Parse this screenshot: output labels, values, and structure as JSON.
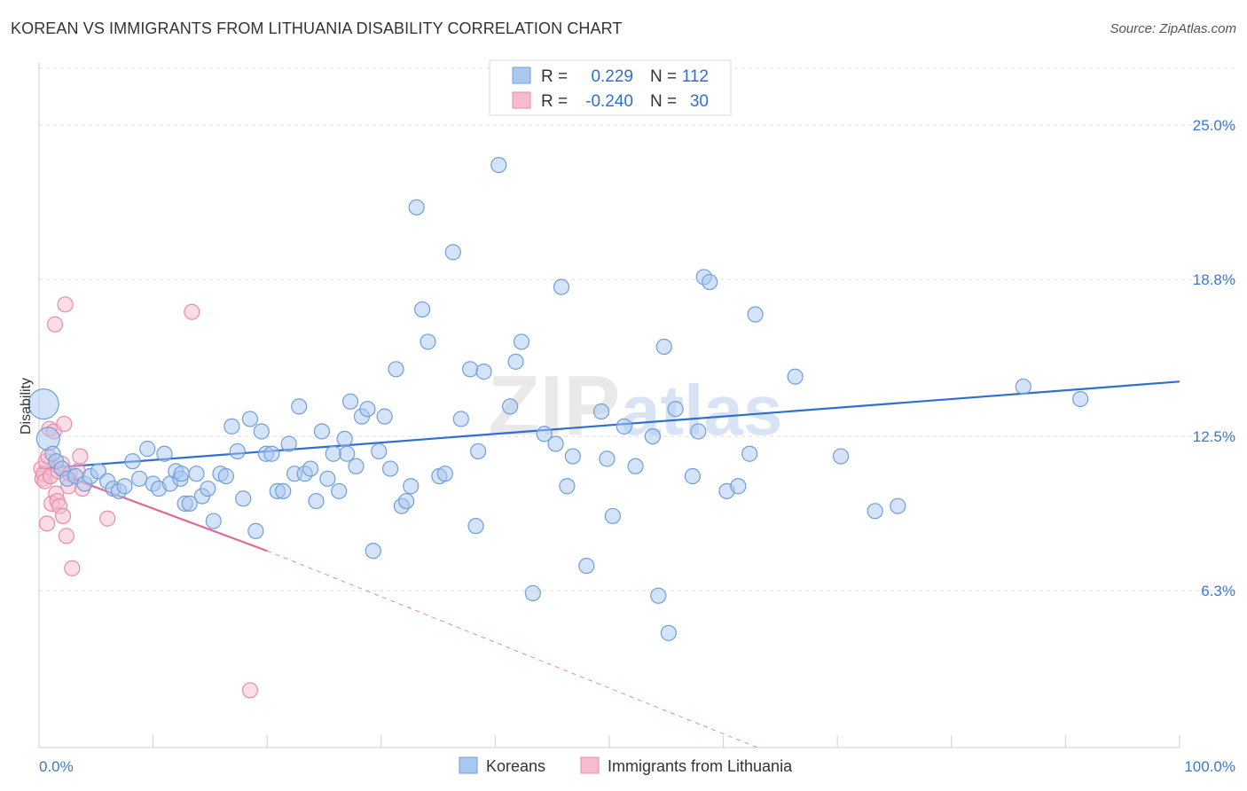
{
  "title": "KOREAN VS IMMIGRANTS FROM LITHUANIA DISABILITY CORRELATION CHART",
  "source": "Source: ZipAtlas.com",
  "watermark": {
    "zip": "ZIP",
    "atlas": "atlas"
  },
  "colors": {
    "koreans_fill": "#a9c8ef",
    "koreans_stroke": "#6f9fd8",
    "koreans_line": "#2f6fcf",
    "lithuania_fill": "#f6bccd",
    "lithuania_stroke": "#ea8ba9",
    "lithuania_line": "#e06a94",
    "tick_label": "#3a78cc",
    "grid": "#dddddd"
  },
  "legend": {
    "rows": [
      {
        "r_label": "R =",
        "r_value": "0.229",
        "n_label": "N =",
        "n_value": "112"
      },
      {
        "r_label": "R =",
        "r_value": "-0.240",
        "n_label": "N =",
        "n_value": "30"
      }
    ]
  },
  "chart_data": {
    "type": "scatter",
    "title": "KOREAN VS IMMIGRANTS FROM LITHUANIA DISABILITY CORRELATION CHART",
    "xlabel": "",
    "ylabel": "Disability",
    "xlim": [
      0,
      100
    ],
    "ylim": [
      0,
      27.5
    ],
    "x_tick_labels": [
      "0.0%",
      "100.0%"
    ],
    "y_ticks": [
      6.3,
      12.5,
      18.8,
      25.0
    ],
    "y_tick_labels": [
      "6.3%",
      "12.5%",
      "18.8%",
      "25.0%"
    ],
    "grid": "horizontal dashed",
    "legend_position": "top-center",
    "series": [
      {
        "name": "Koreans",
        "r": 0.229,
        "n": 112,
        "trendline": {
          "x": [
            0,
            100
          ],
          "y": [
            11.2,
            14.7
          ]
        },
        "points": [
          [
            0.4,
            13.8,
            3
          ],
          [
            0.8,
            12.4,
            2
          ],
          [
            1.2,
            11.8,
            1
          ],
          [
            1.5,
            11.5,
            1
          ],
          [
            2.0,
            11.2,
            1
          ],
          [
            2.5,
            10.8,
            1
          ],
          [
            3.2,
            10.9,
            1
          ],
          [
            4.0,
            10.6,
            1
          ],
          [
            4.5,
            10.9,
            1
          ],
          [
            5.2,
            11.1,
            1
          ],
          [
            6.0,
            10.7,
            1
          ],
          [
            6.5,
            10.4,
            1
          ],
          [
            7.0,
            10.3,
            1
          ],
          [
            7.5,
            10.5,
            1
          ],
          [
            8.2,
            11.5,
            1
          ],
          [
            8.8,
            10.8,
            1
          ],
          [
            9.5,
            12.0,
            1
          ],
          [
            10.0,
            10.6,
            1
          ],
          [
            10.5,
            10.4,
            1
          ],
          [
            11.0,
            11.8,
            1
          ],
          [
            11.5,
            10.6,
            1
          ],
          [
            12.0,
            11.1,
            1
          ],
          [
            12.4,
            10.8,
            1
          ],
          [
            12.8,
            9.8,
            1
          ],
          [
            13.2,
            9.8,
            1
          ],
          [
            13.8,
            11.0,
            1
          ],
          [
            14.3,
            10.1,
            1
          ],
          [
            14.8,
            10.4,
            1
          ],
          [
            15.3,
            9.1,
            1
          ],
          [
            15.9,
            11.0,
            1
          ],
          [
            16.4,
            10.9,
            1
          ],
          [
            16.9,
            12.9,
            1
          ],
          [
            17.4,
            11.9,
            1
          ],
          [
            17.9,
            10.0,
            1
          ],
          [
            18.5,
            13.2,
            1
          ],
          [
            19.0,
            8.7,
            1
          ],
          [
            19.5,
            12.7,
            1
          ],
          [
            19.9,
            11.8,
            1
          ],
          [
            20.4,
            11.8,
            1
          ],
          [
            20.9,
            10.3,
            1
          ],
          [
            21.4,
            10.3,
            1
          ],
          [
            21.9,
            12.2,
            1
          ],
          [
            22.4,
            11.0,
            1
          ],
          [
            22.8,
            13.7,
            1
          ],
          [
            23.3,
            11.0,
            1
          ],
          [
            23.8,
            11.2,
            1
          ],
          [
            24.3,
            9.9,
            1
          ],
          [
            24.8,
            12.7,
            1
          ],
          [
            25.3,
            10.8,
            1
          ],
          [
            25.8,
            11.8,
            1
          ],
          [
            26.3,
            10.3,
            1
          ],
          [
            26.8,
            12.4,
            1
          ],
          [
            27.3,
            13.9,
            1
          ],
          [
            27.8,
            11.3,
            1
          ],
          [
            28.3,
            13.3,
            1
          ],
          [
            28.8,
            13.6,
            1
          ],
          [
            29.3,
            7.9,
            1
          ],
          [
            29.8,
            11.9,
            1
          ],
          [
            30.3,
            13.3,
            1
          ],
          [
            30.8,
            11.2,
            1
          ],
          [
            31.3,
            15.2,
            1
          ],
          [
            31.8,
            9.7,
            1
          ],
          [
            32.2,
            9.9,
            1
          ],
          [
            32.6,
            10.5,
            1
          ],
          [
            33.1,
            21.7,
            1
          ],
          [
            33.6,
            17.6,
            1
          ],
          [
            34.1,
            16.3,
            1
          ],
          [
            35.1,
            10.9,
            1
          ],
          [
            35.6,
            11.0,
            1
          ],
          [
            36.3,
            19.9,
            1
          ],
          [
            37.0,
            13.2,
            1
          ],
          [
            37.8,
            15.2,
            1
          ],
          [
            38.3,
            8.9,
            1
          ],
          [
            39.0,
            15.1,
            1
          ],
          [
            40.3,
            23.4,
            1
          ],
          [
            41.3,
            13.7,
            1
          ],
          [
            41.8,
            15.5,
            1
          ],
          [
            42.3,
            16.3,
            1
          ],
          [
            43.3,
            6.2,
            1
          ],
          [
            44.3,
            12.6,
            1
          ],
          [
            45.3,
            12.2,
            1
          ],
          [
            45.8,
            18.5,
            1
          ],
          [
            46.3,
            10.5,
            1
          ],
          [
            46.8,
            11.7,
            1
          ],
          [
            48.0,
            7.3,
            1
          ],
          [
            49.3,
            13.5,
            1
          ],
          [
            49.8,
            11.6,
            1
          ],
          [
            50.3,
            9.3,
            1
          ],
          [
            51.3,
            12.9,
            1
          ],
          [
            52.3,
            11.3,
            1
          ],
          [
            53.8,
            12.5,
            1
          ],
          [
            54.3,
            6.1,
            1
          ],
          [
            54.8,
            16.1,
            1
          ],
          [
            55.2,
            4.6,
            1
          ],
          [
            55.8,
            13.6,
            1
          ],
          [
            57.3,
            10.9,
            1
          ],
          [
            57.8,
            12.7,
            1
          ],
          [
            58.3,
            18.9,
            1
          ],
          [
            58.8,
            18.7,
            1
          ],
          [
            60.3,
            10.3,
            1
          ],
          [
            61.3,
            10.5,
            1
          ],
          [
            62.3,
            11.8,
            1
          ],
          [
            62.8,
            17.4,
            1
          ],
          [
            66.3,
            14.9,
            1
          ],
          [
            70.3,
            11.7,
            1
          ],
          [
            73.3,
            9.5,
            1
          ],
          [
            75.3,
            9.7,
            1
          ],
          [
            86.3,
            14.5,
            1
          ],
          [
            91.3,
            14.0,
            1
          ],
          [
            12.5,
            11.0,
            1
          ],
          [
            27.0,
            11.8,
            1
          ],
          [
            38.5,
            11.9,
            1
          ]
        ]
      },
      {
        "name": "Immigrants from Lithuania",
        "r": -0.24,
        "n": 30,
        "trendline": {
          "x": [
            0,
            20
          ],
          "y": [
            11.3,
            7.9
          ],
          "dashed_to": {
            "x": 63,
            "y": 0
          }
        },
        "points": [
          [
            0.2,
            11.2,
            1
          ],
          [
            0.3,
            10.8,
            1
          ],
          [
            0.4,
            11.0,
            1
          ],
          [
            0.5,
            10.7,
            1
          ],
          [
            0.6,
            11.5,
            1
          ],
          [
            0.7,
            9.0,
            1
          ],
          [
            0.8,
            11.7,
            1
          ],
          [
            0.9,
            12.8,
            1
          ],
          [
            1.0,
            10.9,
            1
          ],
          [
            1.1,
            9.8,
            1
          ],
          [
            1.3,
            12.7,
            1
          ],
          [
            1.4,
            17.0,
            1
          ],
          [
            1.5,
            10.2,
            1
          ],
          [
            1.6,
            9.9,
            1
          ],
          [
            1.7,
            11.1,
            1
          ],
          [
            1.8,
            9.7,
            1
          ],
          [
            2.0,
            11.4,
            1
          ],
          [
            2.1,
            9.3,
            1
          ],
          [
            2.2,
            13.0,
            1
          ],
          [
            2.3,
            17.8,
            1
          ],
          [
            2.4,
            8.5,
            1
          ],
          [
            2.6,
            10.5,
            1
          ],
          [
            2.7,
            11.0,
            1
          ],
          [
            2.9,
            7.2,
            1
          ],
          [
            3.4,
            11.1,
            1
          ],
          [
            3.6,
            11.7,
            1
          ],
          [
            3.8,
            10.4,
            1
          ],
          [
            6.0,
            9.2,
            1
          ],
          [
            13.4,
            17.5,
            1
          ],
          [
            18.5,
            2.3,
            1
          ]
        ]
      }
    ]
  }
}
